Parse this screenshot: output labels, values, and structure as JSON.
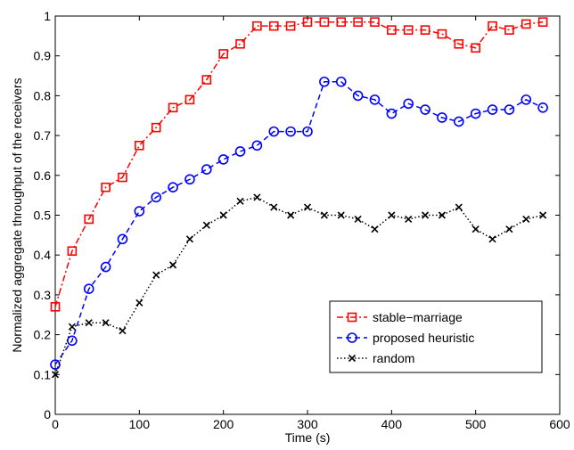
{
  "chart_data": {
    "type": "line",
    "xlabel": "Time (s)",
    "ylabel": "Normalized aggregate throughput of the receivers",
    "xlim": [
      0,
      600
    ],
    "ylim": [
      0,
      1
    ],
    "xticks": [
      "0",
      "100",
      "200",
      "300",
      "400",
      "500",
      "600"
    ],
    "yticks": [
      "0",
      "0.1",
      "0.2",
      "0.3",
      "0.4",
      "0.5",
      "0.6",
      "0.7",
      "0.8",
      "0.9",
      "1"
    ],
    "grid": false,
    "legend_position": "lower-right",
    "x": [
      0,
      20,
      40,
      60,
      80,
      100,
      120,
      140,
      160,
      180,
      200,
      220,
      240,
      260,
      280,
      300,
      320,
      340,
      360,
      380,
      400,
      420,
      440,
      460,
      480,
      500,
      520,
      540,
      560,
      580
    ],
    "series": [
      {
        "name": "stable−marriage",
        "color": "#ff0000",
        "marker": "square",
        "line_style": "dash-dot",
        "values": [
          0.27,
          0.41,
          0.49,
          0.57,
          0.595,
          0.675,
          0.72,
          0.77,
          0.79,
          0.84,
          0.905,
          0.93,
          0.975,
          0.975,
          0.975,
          0.985,
          0.985,
          0.985,
          0.985,
          0.985,
          0.965,
          0.965,
          0.965,
          0.955,
          0.93,
          0.92,
          0.975,
          0.965,
          0.98,
          0.985
        ]
      },
      {
        "name": "proposed heuristic",
        "color": "#0000ff",
        "marker": "circle",
        "line_style": "dashed",
        "values": [
          0.125,
          0.185,
          0.315,
          0.37,
          0.44,
          0.51,
          0.545,
          0.57,
          0.59,
          0.615,
          0.64,
          0.66,
          0.675,
          0.71,
          0.71,
          0.71,
          0.835,
          0.835,
          0.8,
          0.79,
          0.755,
          0.78,
          0.765,
          0.745,
          0.735,
          0.755,
          0.765,
          0.765,
          0.79,
          0.77
        ]
      },
      {
        "name": "random",
        "color": "#000000",
        "marker": "x",
        "line_style": "dotted",
        "values": [
          0.1,
          0.22,
          0.23,
          0.23,
          0.21,
          0.28,
          0.35,
          0.375,
          0.44,
          0.475,
          0.5,
          0.535,
          0.545,
          0.52,
          0.5,
          0.52,
          0.5,
          0.5,
          0.49,
          0.465,
          0.5,
          0.49,
          0.5,
          0.5,
          0.52,
          0.465,
          0.44,
          0.465,
          0.49,
          0.5
        ]
      }
    ]
  }
}
